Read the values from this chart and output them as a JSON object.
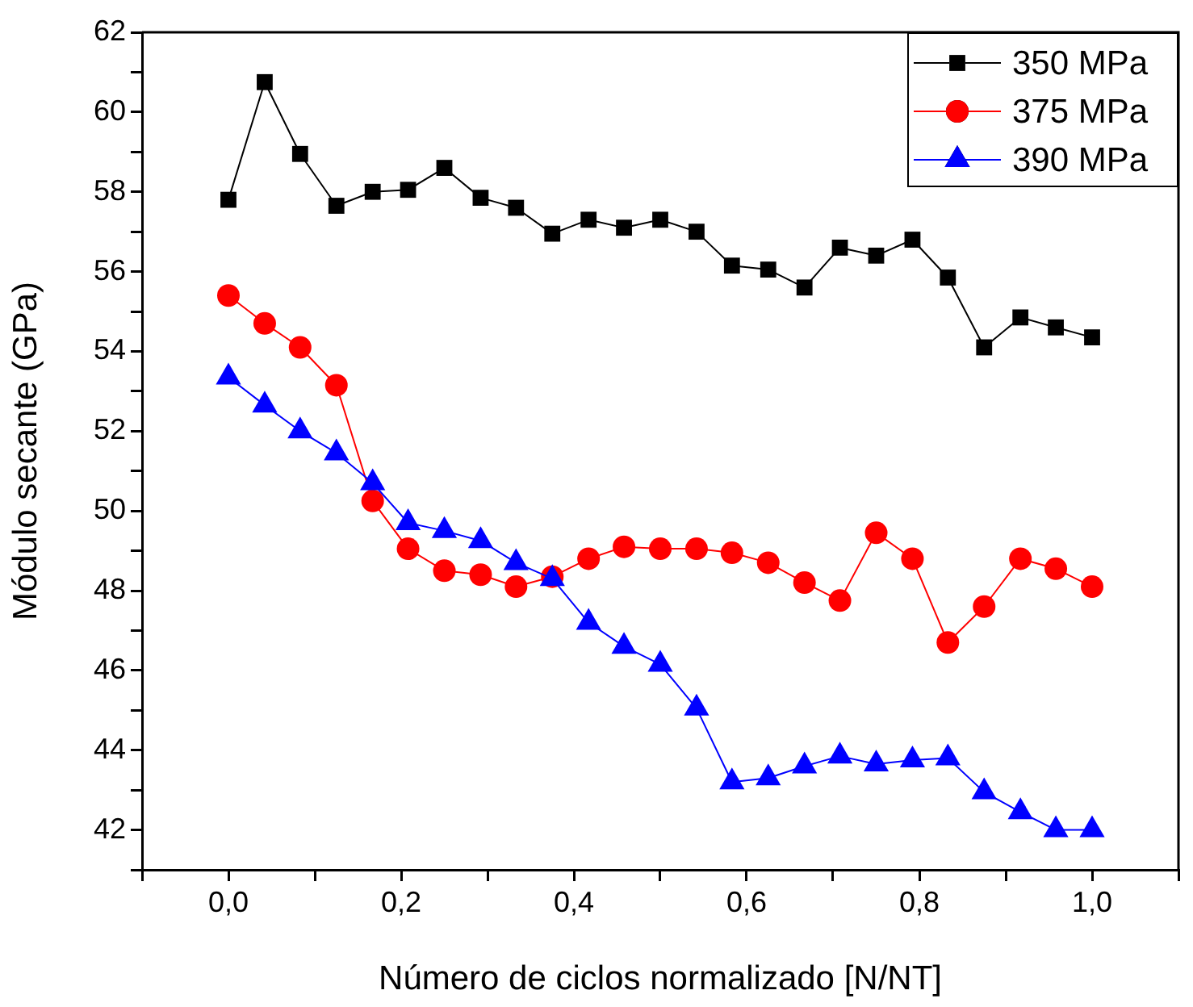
{
  "chart_data": {
    "type": "line",
    "xlabel": "Número de ciclos normalizado [N/NT]",
    "ylabel": "Módulo secante (GPa)",
    "x": [
      0,
      0.042,
      0.083,
      0.125,
      0.167,
      0.208,
      0.25,
      0.292,
      0.333,
      0.375,
      0.417,
      0.458,
      0.5,
      0.542,
      0.583,
      0.625,
      0.667,
      0.708,
      0.75,
      0.792,
      0.833,
      0.875,
      0.917,
      0.958,
      1.0
    ],
    "series": [
      {
        "name": "350 MPa",
        "color": "#000000",
        "marker": "square",
        "values": [
          57.8,
          60.75,
          58.95,
          57.65,
          58.0,
          58.05,
          58.6,
          57.85,
          57.6,
          56.95,
          57.3,
          57.1,
          57.3,
          57.0,
          56.15,
          56.05,
          55.6,
          56.6,
          56.4,
          56.8,
          55.85,
          54.1,
          54.85,
          54.6,
          54.35
        ]
      },
      {
        "name": "375 MPa",
        "color": "#ff0000",
        "marker": "circle",
        "values": [
          55.4,
          54.7,
          54.1,
          53.15,
          50.25,
          49.05,
          48.5,
          48.4,
          48.1,
          48.35,
          48.8,
          49.1,
          49.05,
          49.05,
          48.95,
          48.7,
          48.2,
          47.75,
          49.45,
          48.8,
          46.7,
          47.6,
          48.8,
          48.55,
          48.1
        ]
      },
      {
        "name": "390 MPa",
        "color": "#0000ff",
        "marker": "triangle",
        "values": [
          53.35,
          52.65,
          52.0,
          51.45,
          50.7,
          49.7,
          49.5,
          49.25,
          48.7,
          48.3,
          47.2,
          46.6,
          46.15,
          45.05,
          43.2,
          43.3,
          43.6,
          43.85,
          43.65,
          43.75,
          43.8,
          42.95,
          42.45,
          42.0,
          42.0
        ]
      }
    ],
    "xlim": [
      -0.1,
      1.1
    ],
    "xticks": [
      {
        "value": -0.1,
        "label": null
      },
      {
        "value": 0,
        "label": "0,0"
      },
      {
        "value": 0.1,
        "label": null
      },
      {
        "value": 0.2,
        "label": "0,2"
      },
      {
        "value": 0.3,
        "label": null
      },
      {
        "value": 0.4,
        "label": "0,4"
      },
      {
        "value": 0.5,
        "label": null
      },
      {
        "value": 0.6,
        "label": "0,6"
      },
      {
        "value": 0.7,
        "label": null
      },
      {
        "value": 0.8,
        "label": "0,8"
      },
      {
        "value": 0.9,
        "label": null
      },
      {
        "value": 1.0,
        "label": "1,0"
      },
      {
        "value": 1.1,
        "label": null
      }
    ],
    "ylim": [
      41,
      62
    ],
    "yticks": [
      {
        "value": 41,
        "label": null
      },
      42,
      {
        "value": 43,
        "label": null
      },
      44,
      {
        "value": 45,
        "label": null
      },
      46,
      {
        "value": 47,
        "label": null
      },
      48,
      {
        "value": 49,
        "label": null
      },
      50,
      {
        "value": 51,
        "label": null
      },
      52,
      {
        "value": 53,
        "label": null
      },
      54,
      {
        "value": 55,
        "label": null
      },
      56,
      {
        "value": 57,
        "label": null
      },
      58,
      {
        "value": 59,
        "label": null
      },
      60,
      {
        "value": 61,
        "label": null
      },
      62
    ],
    "grid": false,
    "legend": "top right",
    "line_style": "solid"
  }
}
